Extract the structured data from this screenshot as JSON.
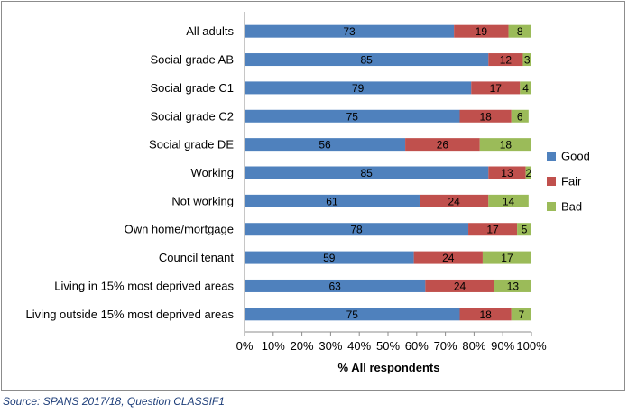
{
  "chart_data": {
    "type": "bar",
    "orientation": "horizontal",
    "stacked": true,
    "categories": [
      "All adults",
      "Social grade AB",
      "Social grade C1",
      "Social grade C2",
      "Social grade DE",
      "Working",
      "Not working",
      "Own home/mortgage",
      "Council tenant",
      "Living in 15% most deprived areas",
      "Living outside 15% most deprived areas"
    ],
    "series": [
      {
        "name": "Good",
        "color": "#4f81bd",
        "values": [
          73,
          85,
          79,
          75,
          56,
          85,
          61,
          78,
          59,
          63,
          75
        ]
      },
      {
        "name": "Fair",
        "color": "#c0504d",
        "values": [
          19,
          12,
          17,
          18,
          26,
          13,
          24,
          17,
          24,
          24,
          18
        ]
      },
      {
        "name": "Bad",
        "color": "#9bbb59",
        "values": [
          8,
          3,
          4,
          6,
          18,
          2,
          14,
          5,
          17,
          13,
          7
        ]
      }
    ],
    "xlabel": "% All respondents",
    "xlim": [
      0,
      100
    ],
    "x_ticks": [
      "0%",
      "10%",
      "20%",
      "30%",
      "40%",
      "50%",
      "60%",
      "70%",
      "80%",
      "90%",
      "100%"
    ],
    "grid": false,
    "legend_position": "right"
  },
  "source_note": "Source: SPANS 2017/18, Question CLASSIF1"
}
